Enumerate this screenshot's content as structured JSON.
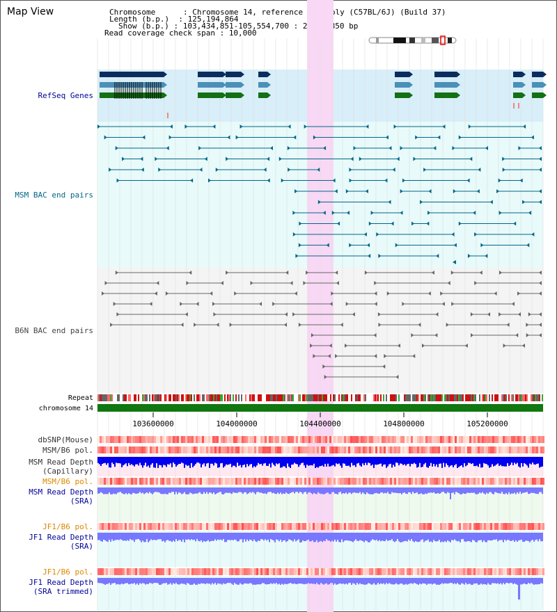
{
  "header": {
    "title": "Map View",
    "chromosome_label": "Chromosome      :",
    "chromosome_value": "Chromosome 14, reference assembly (C57BL/6J) (Build 37)",
    "length_label": "Length (b.p.)  :",
    "length_value": "125,194,864",
    "show_label": "Show (b.p.) :",
    "show_value": "103,434,851-105,554,700 : 2,119,850 bp",
    "coverage_label": "Read coverage check span :",
    "coverage_value": "10,000"
  },
  "tracks": {
    "refseq": {
      "label": "RefSeq Genes",
      "color": "#000099"
    },
    "msm_bac": {
      "label": "MSM BAC end pairs",
      "color": "#006688"
    },
    "b6n_bac": {
      "label": "B6N BAC end pairs",
      "color": "#444444"
    },
    "repeat": {
      "label": "Repeat"
    },
    "chromosome": {
      "label": "chromosome 14"
    },
    "dbsnp": {
      "label": "dbSNP(Mouse)"
    },
    "msm_b6_pol": {
      "label": "MSM/B6 pol."
    },
    "msm_depth_cap": {
      "label1": "MSM Read Depth",
      "label2": "(Capillary)"
    },
    "msm_b6_pol2": {
      "label": "MSM/B6 pol."
    },
    "msm_depth_sra": {
      "label1": "MSM Read Depth",
      "label2": "(SRA)"
    },
    "jf1_b6_pol": {
      "label": "JF1/B6 pol."
    },
    "jf1_depth_sra": {
      "label1": "JF1 Read Depth",
      "label2": "(SRA)"
    },
    "jf1_b6_pol2": {
      "label": "JF1/B6 pol."
    },
    "jf1_depth_trim": {
      "label1": "JF1 Read Depth",
      "label2": "(SRA trimmed)"
    }
  },
  "axis": {
    "ticks": [
      "103600000",
      "104000000",
      "104400000",
      "104800000",
      "105200000"
    ]
  },
  "colors": {
    "highlight": "#f8d8f4",
    "refseq_bg": "#d8eef8",
    "msm_bg": "#e8fafa",
    "b6n_bg": "#f4f4f4",
    "gene_dark": "#0b2d5e",
    "gene_mid": "#4a90b8",
    "gene_green": "#137013",
    "depth_dark": "#0000ee",
    "depth_light": "#7777ff",
    "pol_red": "#ee3333",
    "orange_label": "#dd8800",
    "blue_label": "#000099"
  }
}
